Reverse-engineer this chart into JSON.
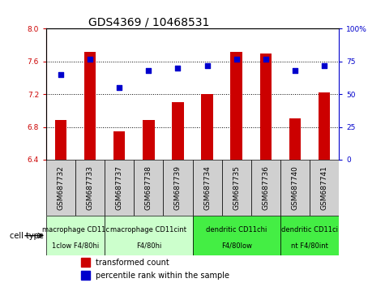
{
  "title": "GDS4369 / 10468531",
  "samples": [
    "GSM687732",
    "GSM687733",
    "GSM687737",
    "GSM687738",
    "GSM687739",
    "GSM687734",
    "GSM687735",
    "GSM687736",
    "GSM687740",
    "GSM687741"
  ],
  "bar_values": [
    6.88,
    7.72,
    6.75,
    6.88,
    7.1,
    7.2,
    7.72,
    7.7,
    6.9,
    7.22
  ],
  "dot_values": [
    65,
    77,
    55,
    68,
    70,
    72,
    77,
    77,
    68,
    72
  ],
  "ylim_left": [
    6.4,
    8.0
  ],
  "ylim_right": [
    0,
    100
  ],
  "yticks_left": [
    6.4,
    6.8,
    7.2,
    7.6,
    8.0
  ],
  "yticks_right": [
    0,
    25,
    50,
    75,
    100
  ],
  "bar_color": "#cc0000",
  "dot_color": "#0000cc",
  "bar_bottom": 6.4,
  "group_defs": [
    {
      "start": 0,
      "end": 2,
      "label1": "macrophage CD11c",
      "label2": "1clow F4/80hi",
      "color": "#ccffcc"
    },
    {
      "start": 2,
      "end": 5,
      "label1": "macrophage CD11cint",
      "label2": "F4/80hi",
      "color": "#ccffcc"
    },
    {
      "start": 5,
      "end": 8,
      "label1": "dendritic CD11chi",
      "label2": "F4/80low",
      "color": "#44ee44"
    },
    {
      "start": 8,
      "end": 10,
      "label1": "dendritic CD11ci",
      "label2": "nt F4/80int",
      "color": "#44ee44"
    }
  ],
  "legend_bar_label": "transformed count",
  "legend_dot_label": "percentile rank within the sample",
  "cell_type_label": "cell type",
  "title_fontsize": 10,
  "tick_fontsize": 6.5,
  "cell_fontsize": 6,
  "legend_fontsize": 7,
  "bar_width": 0.4
}
